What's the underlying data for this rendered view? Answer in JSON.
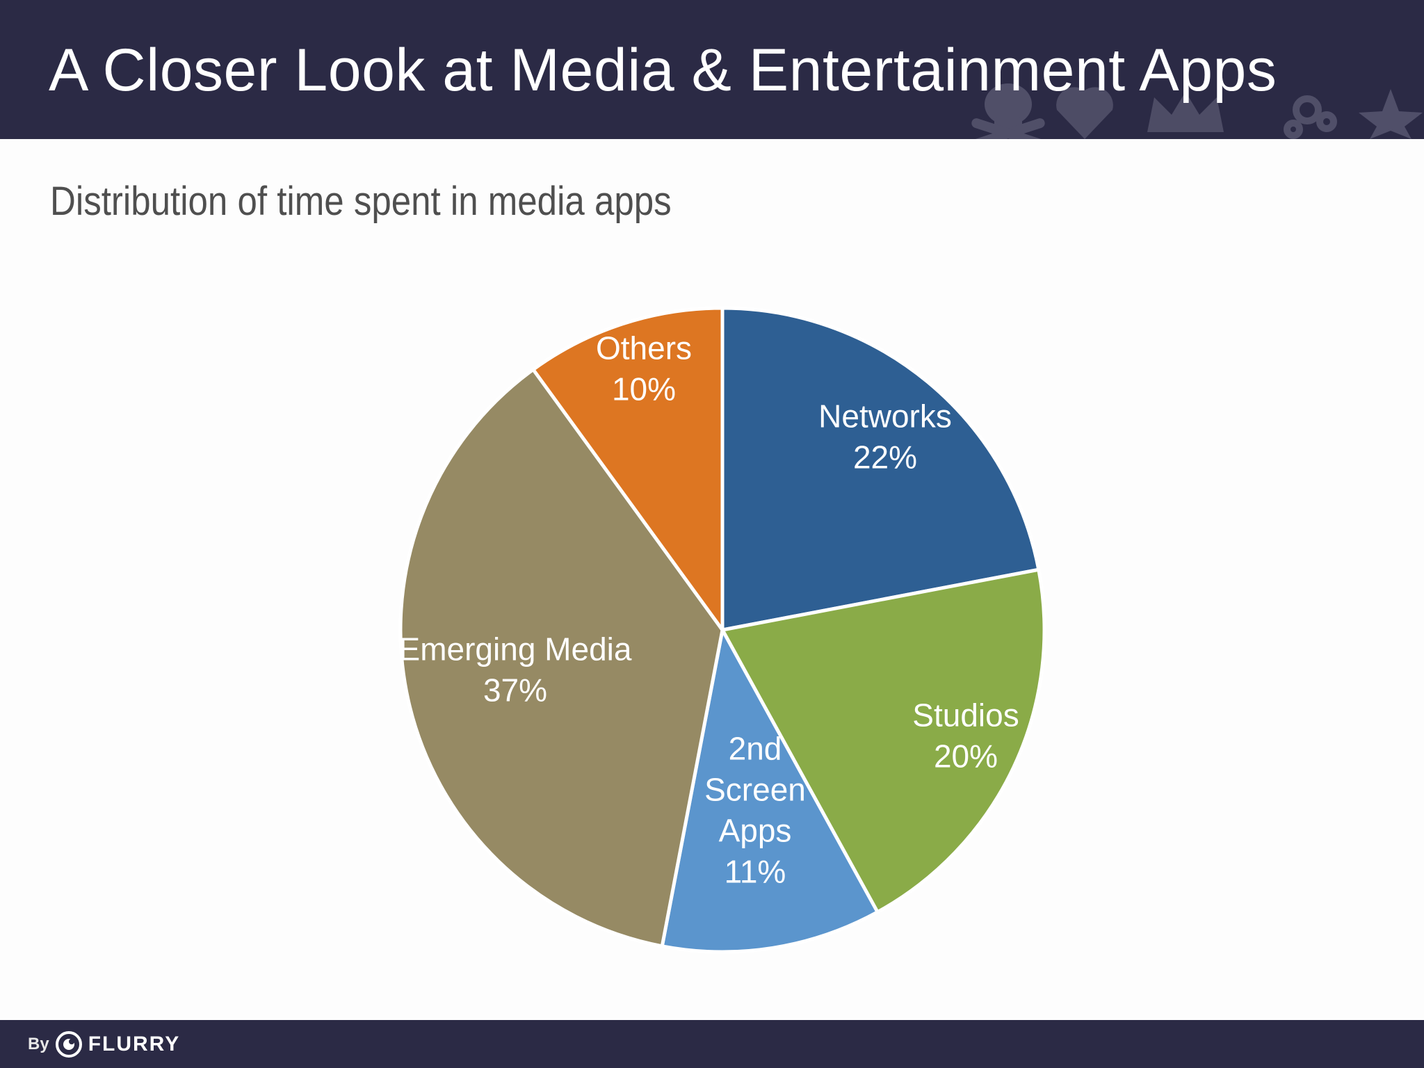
{
  "header": {
    "title": "A Closer Look at Media & Entertainment Apps"
  },
  "subtitle": "Distribution of time spent in media apps",
  "footer": {
    "by": "By",
    "brand": "FLURRY"
  },
  "icons": [
    "skull-icon",
    "heart-icon",
    "crown-icon",
    "gear-icon",
    "star-icon",
    "flurry-logo-icon"
  ],
  "chart_data": {
    "type": "pie",
    "start_angle_deg": 0,
    "direction": "clockwise",
    "labels_inside": true,
    "slices": [
      {
        "label": "Networks",
        "value": 22,
        "value_label": "22%",
        "color": "#2e5f93"
      },
      {
        "label": "Studios",
        "value": 20,
        "value_label": "20%",
        "color": "#8aab48"
      },
      {
        "label": "2nd Screen Apps",
        "value": 11,
        "value_label": "11%",
        "color": "#5b95cd"
      },
      {
        "label": "Emerging Media",
        "value": 37,
        "value_label": "37%",
        "color": "#968a64"
      },
      {
        "label": "Others",
        "value": 10,
        "value_label": "10%",
        "color": "#dd7622"
      }
    ]
  }
}
